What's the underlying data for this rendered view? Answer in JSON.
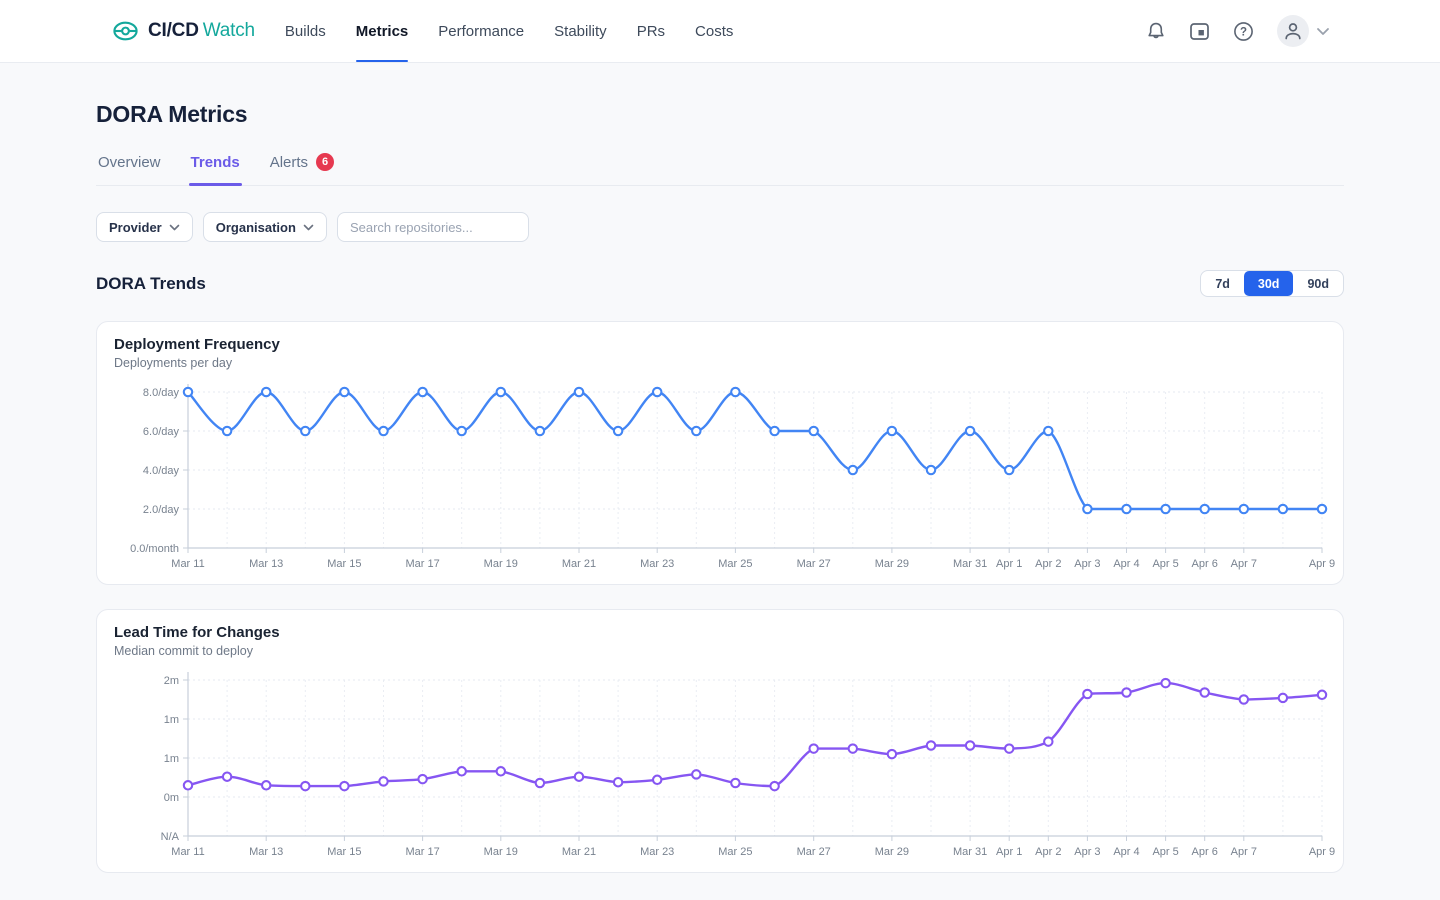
{
  "header": {
    "logo": {
      "brand_bold": "CI/CD",
      "brand_light": "Watch"
    },
    "nav": [
      {
        "label": "Builds",
        "active": false
      },
      {
        "label": "Metrics",
        "active": true
      },
      {
        "label": "Performance",
        "active": false
      },
      {
        "label": "Stability",
        "active": false
      },
      {
        "label": "PRs",
        "active": false
      },
      {
        "label": "Costs",
        "active": false
      }
    ],
    "icons": {
      "help_glyph": "?",
      "names": [
        "bell-icon",
        "widget-panel-icon",
        "help-icon",
        "avatar",
        "chevron-down-icon"
      ]
    }
  },
  "page": {
    "title": "DORA Metrics",
    "tabs": [
      {
        "label": "Overview",
        "active": false
      },
      {
        "label": "Trends",
        "active": true
      },
      {
        "label": "Alerts",
        "active": false,
        "badge": "6"
      }
    ]
  },
  "filters": {
    "provider_label": "Provider",
    "organisation_label": "Organisation",
    "search_placeholder": "Search repositories..."
  },
  "trends": {
    "heading": "DORA Trends",
    "ranges": [
      {
        "label": "7d",
        "active": false
      },
      {
        "label": "30d",
        "active": true
      },
      {
        "label": "90d",
        "active": false
      }
    ]
  },
  "colors": {
    "brand_teal": "#14a89c",
    "nav_active_underline": "#2563eb",
    "tab_active_purple": "#6b5be8",
    "alert_badge_red": "#e63950",
    "range_active_blue": "#2563eb",
    "chart1_line": "#4285f4",
    "chart2_line": "#8656f2"
  },
  "chart_data": [
    {
      "type": "line",
      "title": "Deployment Frequency",
      "subtitle": "Deployments per day",
      "x": [
        "Mar 11",
        "Mar 12",
        "Mar 13",
        "Mar 14",
        "Mar 15",
        "Mar 16",
        "Mar 17",
        "Mar 18",
        "Mar 19",
        "Mar 20",
        "Mar 21",
        "Mar 22",
        "Mar 23",
        "Mar 24",
        "Mar 25",
        "Mar 26",
        "Mar 27",
        "Mar 28",
        "Mar 29",
        "Mar 30",
        "Mar 31",
        "Apr 1",
        "Apr 2",
        "Apr 3",
        "Apr 4",
        "Apr 5",
        "Apr 6",
        "Apr 7",
        "Apr 8",
        "Apr 9"
      ],
      "x_tick_indices": [
        0,
        2,
        4,
        6,
        8,
        10,
        12,
        14,
        16,
        18,
        20,
        21,
        22,
        23,
        24,
        25,
        26,
        27,
        29
      ],
      "values": [
        8,
        6,
        8,
        6,
        8,
        6,
        8,
        6,
        8,
        6,
        8,
        6,
        8,
        6,
        8,
        6,
        6,
        4,
        6,
        4,
        6,
        4,
        6,
        2,
        2,
        2,
        2,
        2,
        2,
        2
      ],
      "ylim": [
        0,
        8
      ],
      "y_ticks": [
        {
          "value": 8,
          "label": "8.0/day"
        },
        {
          "value": 6,
          "label": "6.0/day"
        },
        {
          "value": 4,
          "label": "4.0/day"
        },
        {
          "value": 2,
          "label": "2.0/day"
        },
        {
          "value": 0,
          "label": "0.0/month"
        }
      ],
      "line_color": "#4285f4",
      "grid": true,
      "legend": "none"
    },
    {
      "type": "line",
      "title": "Lead Time for Changes",
      "subtitle": "Median commit to deploy",
      "x": [
        "Mar 11",
        "Mar 12",
        "Mar 13",
        "Mar 14",
        "Mar 15",
        "Mar 16",
        "Mar 17",
        "Mar 18",
        "Mar 19",
        "Mar 20",
        "Mar 21",
        "Mar 22",
        "Mar 23",
        "Mar 24",
        "Mar 25",
        "Mar 26",
        "Mar 27",
        "Mar 28",
        "Mar 29",
        "Mar 30",
        "Mar 31",
        "Apr 1",
        "Apr 2",
        "Apr 3",
        "Apr 4",
        "Apr 5",
        "Apr 6",
        "Apr 7",
        "Apr 8",
        "Apr 9"
      ],
      "x_tick_indices": [
        0,
        2,
        4,
        6,
        8,
        10,
        12,
        14,
        16,
        18,
        20,
        21,
        22,
        23,
        24,
        25,
        26,
        27,
        29
      ],
      "values": [
        0.65,
        0.76,
        0.65,
        0.64,
        0.64,
        0.7,
        0.73,
        0.83,
        0.83,
        0.68,
        0.76,
        0.69,
        0.72,
        0.79,
        0.68,
        0.64,
        1.12,
        1.12,
        1.05,
        1.16,
        1.16,
        1.12,
        1.21,
        1.82,
        1.84,
        1.96,
        1.84,
        1.75,
        1.77,
        1.81
      ],
      "ylim": [
        0,
        2
      ],
      "y_ticks": [
        {
          "value": 2,
          "label": "2m"
        },
        {
          "value": 1.5,
          "label": "1m"
        },
        {
          "value": 1,
          "label": "1m"
        },
        {
          "value": 0.5,
          "label": "0m"
        },
        {
          "value": 0,
          "label": "N/A"
        }
      ],
      "line_color": "#8656f2",
      "grid": true,
      "legend": "none"
    }
  ]
}
